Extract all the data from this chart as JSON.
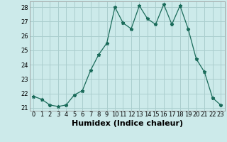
{
  "x": [
    0,
    1,
    2,
    3,
    4,
    5,
    6,
    7,
    8,
    9,
    10,
    11,
    12,
    13,
    14,
    15,
    16,
    17,
    18,
    19,
    20,
    21,
    22,
    23
  ],
  "y": [
    21.8,
    21.6,
    21.2,
    21.1,
    21.2,
    21.9,
    22.2,
    23.6,
    24.7,
    25.5,
    28.0,
    26.9,
    26.5,
    28.1,
    27.2,
    26.8,
    28.2,
    26.8,
    28.1,
    26.5,
    24.4,
    23.5,
    21.7,
    21.2
  ],
  "line_color": "#1a6b5a",
  "marker": "*",
  "marker_size": 3.5,
  "bg_color": "#cceaea",
  "grid_color": "#aacece",
  "xlabel": "Humidex (Indice chaleur)",
  "ylim": [
    20.8,
    28.4
  ],
  "xlim": [
    -0.5,
    23.5
  ],
  "yticks": [
    21,
    22,
    23,
    24,
    25,
    26,
    27,
    28
  ],
  "xticks": [
    0,
    1,
    2,
    3,
    4,
    5,
    6,
    7,
    8,
    9,
    10,
    11,
    12,
    13,
    14,
    15,
    16,
    17,
    18,
    19,
    20,
    21,
    22,
    23
  ],
  "tick_fontsize": 6,
  "xlabel_fontsize": 8,
  "linewidth": 0.9
}
